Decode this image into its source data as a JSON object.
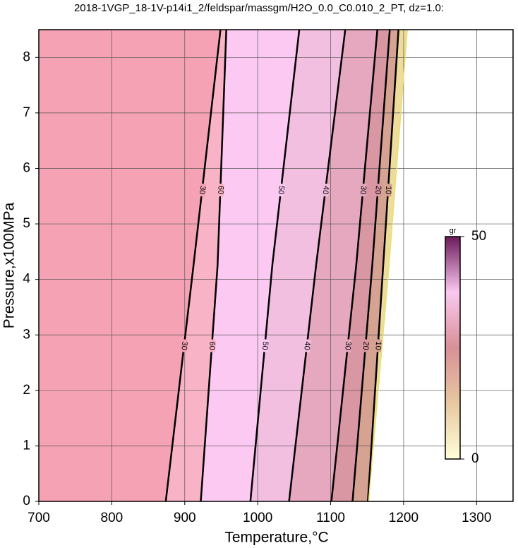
{
  "chart_data": {
    "type": "contour",
    "title": "2018-1VGP_18-1V-p14i1_2/feldspar/massgm/H2O_0.0_C0.010_2_PT, dz=1.0:",
    "xlabel": "Temperature,°C",
    "ylabel": "Pressure,x100MPa",
    "xlim": [
      700,
      1350
    ],
    "ylim": [
      0,
      8.5
    ],
    "xticks": [
      700,
      800,
      900,
      1000,
      1100,
      1200,
      1300
    ],
    "yticks": [
      0,
      1,
      2,
      3,
      4,
      5,
      6,
      7,
      8
    ],
    "grid": true,
    "contours": [
      {
        "level": 30,
        "x": [
          874,
          912,
          949
        ],
        "y": [
          0,
          4.25,
          8.5
        ],
        "fill": "#f5a3b4",
        "labeled": true
      },
      {
        "level": 60,
        "x": [
          922,
          945,
          957
        ],
        "y": [
          0,
          4.25,
          8.5
        ],
        "fill": "#f9b3c6",
        "labeled": true
      },
      {
        "level": 50,
        "x": [
          990,
          1020,
          1057
        ],
        "y": [
          0,
          4.25,
          8.5
        ],
        "fill": "#fcc9f3",
        "labeled": true
      },
      {
        "level": 40,
        "x": [
          1043,
          1080,
          1120
        ],
        "y": [
          0,
          4.25,
          8.5
        ],
        "fill": "#f2bfe0",
        "labeled": true
      },
      {
        "level": 30,
        "x": [
          1101,
          1135,
          1164
        ],
        "y": [
          0,
          4.25,
          8.5
        ],
        "fill": "#e6a8bf",
        "labeled": true
      },
      {
        "level": 20,
        "x": [
          1130,
          1157,
          1181
        ],
        "y": [
          0,
          4.25,
          8.5
        ],
        "fill": "#d996a3",
        "labeled": true
      },
      {
        "level": 10,
        "x": [
          1151,
          1172,
          1193
        ],
        "y": [
          0,
          4.25,
          8.5
        ],
        "fill": "#d6a292",
        "labeled": true
      },
      {
        "level": 0,
        "x": [
          1152,
          1180,
          1205
        ],
        "y": [
          0,
          4.25,
          8.5
        ],
        "fill": "#eedc9c",
        "labeled": false
      }
    ],
    "colorbar": {
      "label": "gr",
      "lim": [
        0,
        50
      ],
      "ticks": [
        0,
        50
      ]
    }
  }
}
